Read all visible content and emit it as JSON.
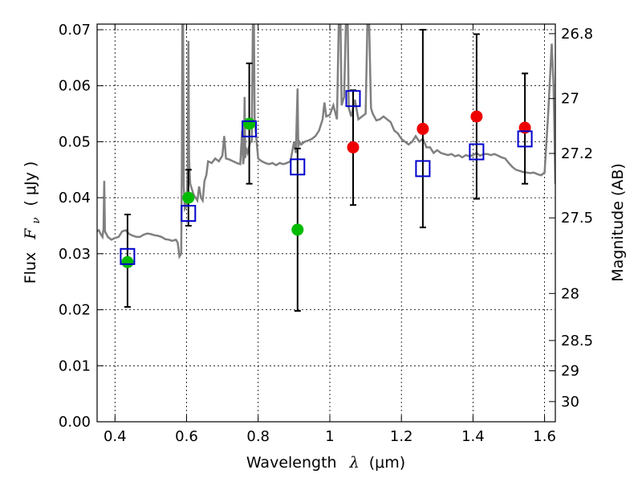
{
  "chart_data": {
    "type": "scatter",
    "xlabel": {
      "prefix": "Wavelength",
      "symbol": "λ",
      "unit": "(μm)"
    },
    "ylabel": {
      "prefix": "Flux",
      "symbol": "F",
      "subscript": "ν",
      "unit": "( μJy )"
    },
    "ylabel_right": "Magnitude (AB)",
    "xlim": [
      0.35,
      1.63
    ],
    "ylim": [
      0.0,
      0.071
    ],
    "grid": true,
    "x_ticks": [
      {
        "value": 0.4,
        "label": "0.4"
      },
      {
        "value": 0.6,
        "label": "0.6"
      },
      {
        "value": 0.8,
        "label": "0.8"
      },
      {
        "value": 1.0,
        "label": "1"
      },
      {
        "value": 1.2,
        "label": "1.2"
      },
      {
        "value": 1.4,
        "label": "1.4"
      },
      {
        "value": 1.6,
        "label": "1.6"
      }
    ],
    "y_ticks": [
      {
        "value": 0.0,
        "label": "0.00"
      },
      {
        "value": 0.01,
        "label": "0.01"
      },
      {
        "value": 0.02,
        "label": "0.02"
      },
      {
        "value": 0.03,
        "label": "0.03"
      },
      {
        "value": 0.04,
        "label": "0.04"
      },
      {
        "value": 0.05,
        "label": "0.05"
      },
      {
        "value": 0.06,
        "label": "0.06"
      },
      {
        "value": 0.07,
        "label": "0.07"
      }
    ],
    "y_right_ticks": [
      {
        "flux": 0.0693,
        "label": "26.8"
      },
      {
        "flux": 0.0577,
        "label": "27"
      },
      {
        "flux": 0.0479,
        "label": "27.2"
      },
      {
        "flux": 0.0364,
        "label": "27.5"
      },
      {
        "flux": 0.0229,
        "label": "28"
      },
      {
        "flux": 0.0145,
        "label": "28.5"
      },
      {
        "flux": 0.0091,
        "label": "29"
      },
      {
        "flux": 0.0036,
        "label": "30"
      }
    ],
    "colors": {
      "model": "#808080",
      "green": "#00bb00",
      "red": "#ee0000",
      "squares": "#0000cc",
      "errorbars": "#000000"
    },
    "model_spectrum": [
      [
        0.35,
        0.034
      ],
      [
        0.355,
        0.0342
      ],
      [
        0.36,
        0.0335
      ],
      [
        0.365,
        0.033
      ],
      [
        0.368,
        0.0345
      ],
      [
        0.37,
        0.043
      ],
      [
        0.372,
        0.034
      ],
      [
        0.38,
        0.033
      ],
      [
        0.39,
        0.0325
      ],
      [
        0.4,
        0.0328
      ],
      [
        0.41,
        0.033
      ],
      [
        0.42,
        0.034
      ],
      [
        0.43,
        0.0342
      ],
      [
        0.44,
        0.0335
      ],
      [
        0.45,
        0.0332
      ],
      [
        0.46,
        0.033
      ],
      [
        0.47,
        0.033
      ],
      [
        0.48,
        0.0334
      ],
      [
        0.49,
        0.0336
      ],
      [
        0.5,
        0.0335
      ],
      [
        0.51,
        0.0333
      ],
      [
        0.52,
        0.0332
      ],
      [
        0.53,
        0.033
      ],
      [
        0.54,
        0.0326
      ],
      [
        0.55,
        0.0325
      ],
      [
        0.56,
        0.0323
      ],
      [
        0.57,
        0.0325
      ],
      [
        0.575,
        0.032
      ],
      [
        0.58,
        0.0295
      ],
      [
        0.585,
        0.03
      ],
      [
        0.587,
        0.048
      ],
      [
        0.588,
        0.071
      ],
      [
        0.59,
        0.071
      ],
      [
        0.592,
        0.042
      ],
      [
        0.595,
        0.038
      ],
      [
        0.6,
        0.0385
      ],
      [
        0.603,
        0.045
      ],
      [
        0.605,
        0.068
      ],
      [
        0.607,
        0.047
      ],
      [
        0.61,
        0.0425
      ],
      [
        0.615,
        0.0415
      ],
      [
        0.62,
        0.0405
      ],
      [
        0.63,
        0.0395
      ],
      [
        0.635,
        0.042
      ],
      [
        0.64,
        0.04
      ],
      [
        0.645,
        0.0395
      ],
      [
        0.65,
        0.043
      ],
      [
        0.655,
        0.044
      ],
      [
        0.66,
        0.0465
      ],
      [
        0.67,
        0.0462
      ],
      [
        0.68,
        0.047
      ],
      [
        0.69,
        0.0465
      ],
      [
        0.7,
        0.0475
      ],
      [
        0.705,
        0.051
      ],
      [
        0.71,
        0.047
      ],
      [
        0.72,
        0.0468
      ],
      [
        0.73,
        0.0465
      ],
      [
        0.74,
        0.0462
      ],
      [
        0.75,
        0.046
      ],
      [
        0.755,
        0.052
      ],
      [
        0.758,
        0.046
      ],
      [
        0.76,
        0.047
      ],
      [
        0.762,
        0.058
      ],
      [
        0.764,
        0.0471
      ],
      [
        0.765,
        0.049
      ],
      [
        0.77,
        0.048
      ],
      [
        0.778,
        0.05
      ],
      [
        0.782,
        0.05
      ],
      [
        0.785,
        0.071
      ],
      [
        0.788,
        0.071
      ],
      [
        0.79,
        0.054
      ],
      [
        0.8,
        0.047
      ],
      [
        0.81,
        0.0465
      ],
      [
        0.82,
        0.0462
      ],
      [
        0.83,
        0.046
      ],
      [
        0.84,
        0.0462
      ],
      [
        0.85,
        0.0458
      ],
      [
        0.86,
        0.0462
      ],
      [
        0.87,
        0.046
      ],
      [
        0.88,
        0.0462
      ],
      [
        0.89,
        0.0465
      ],
      [
        0.9,
        0.05
      ],
      [
        0.905,
        0.048
      ],
      [
        0.91,
        0.0595
      ],
      [
        0.912,
        0.049
      ],
      [
        0.915,
        0.05
      ],
      [
        0.92,
        0.0495
      ],
      [
        0.93,
        0.05
      ],
      [
        0.94,
        0.0502
      ],
      [
        0.95,
        0.0505
      ],
      [
        0.96,
        0.051
      ],
      [
        0.97,
        0.052
      ],
      [
        0.98,
        0.054
      ],
      [
        0.985,
        0.057
      ],
      [
        0.99,
        0.0545
      ],
      [
        1.0,
        0.0548
      ],
      [
        1.01,
        0.0565
      ],
      [
        1.02,
        0.054
      ],
      [
        1.025,
        0.071
      ],
      [
        1.03,
        0.071
      ],
      [
        1.033,
        0.0565
      ],
      [
        1.04,
        0.058
      ],
      [
        1.045,
        0.071
      ],
      [
        1.05,
        0.071
      ],
      [
        1.053,
        0.056
      ],
      [
        1.06,
        0.0545
      ],
      [
        1.07,
        0.0575
      ],
      [
        1.08,
        0.054
      ],
      [
        1.09,
        0.0545
      ],
      [
        1.1,
        0.055
      ],
      [
        1.105,
        0.071
      ],
      [
        1.11,
        0.071
      ],
      [
        1.115,
        0.056
      ],
      [
        1.12,
        0.055
      ],
      [
        1.13,
        0.0538
      ],
      [
        1.14,
        0.054
      ],
      [
        1.15,
        0.0545
      ],
      [
        1.16,
        0.054
      ],
      [
        1.17,
        0.0535
      ],
      [
        1.18,
        0.052
      ],
      [
        1.19,
        0.0515
      ],
      [
        1.2,
        0.0505
      ],
      [
        1.21,
        0.05
      ],
      [
        1.22,
        0.0495
      ],
      [
        1.23,
        0.05
      ],
      [
        1.24,
        0.051
      ],
      [
        1.25,
        0.05
      ],
      [
        1.26,
        0.0505
      ],
      [
        1.27,
        0.049
      ],
      [
        1.28,
        0.049
      ],
      [
        1.29,
        0.048
      ],
      [
        1.3,
        0.0485
      ],
      [
        1.31,
        0.048
      ],
      [
        1.32,
        0.0478
      ],
      [
        1.33,
        0.0476
      ],
      [
        1.34,
        0.0478
      ],
      [
        1.35,
        0.0474
      ],
      [
        1.36,
        0.0476
      ],
      [
        1.37,
        0.0472
      ],
      [
        1.38,
        0.0476
      ],
      [
        1.39,
        0.0474
      ],
      [
        1.4,
        0.0476
      ],
      [
        1.41,
        0.048
      ],
      [
        1.42,
        0.0475
      ],
      [
        1.43,
        0.0478
      ],
      [
        1.44,
        0.0478
      ],
      [
        1.45,
        0.0476
      ],
      [
        1.46,
        0.0478
      ],
      [
        1.47,
        0.0475
      ],
      [
        1.48,
        0.0472
      ],
      [
        1.49,
        0.047
      ],
      [
        1.5,
        0.0462
      ],
      [
        1.51,
        0.0455
      ],
      [
        1.52,
        0.045
      ],
      [
        1.53,
        0.0448
      ],
      [
        1.54,
        0.0446
      ],
      [
        1.55,
        0.0445
      ],
      [
        1.56,
        0.0444
      ],
      [
        1.57,
        0.0445
      ],
      [
        1.58,
        0.0442
      ],
      [
        1.59,
        0.044
      ],
      [
        1.6,
        0.0445
      ],
      [
        1.61,
        0.055
      ],
      [
        1.62,
        0.0675
      ],
      [
        1.625,
        0.06
      ],
      [
        1.63,
        0.0425
      ]
    ],
    "observations": [
      {
        "x": 0.435,
        "y": 0.0295,
        "err_low": 0.0205,
        "err_high": 0.037
      },
      {
        "x": 0.605,
        "y": 0.0372,
        "err_low": 0.035,
        "err_high": 0.045
      },
      {
        "x": 0.775,
        "y": 0.0523,
        "err_low": 0.0425,
        "err_high": 0.064
      },
      {
        "x": 0.91,
        "y": 0.0455,
        "err_low": 0.0198,
        "err_high": 0.0488
      },
      {
        "x": 1.065,
        "y": 0.0577,
        "err_low": 0.0387,
        "err_high": 0.0592
      },
      {
        "x": 1.26,
        "y": 0.0452,
        "err_low": 0.0347,
        "err_high": 0.07
      },
      {
        "x": 1.41,
        "y": 0.0482,
        "err_low": 0.0398,
        "err_high": 0.0692
      },
      {
        "x": 1.545,
        "y": 0.0505,
        "err_low": 0.0425,
        "err_high": 0.0622
      }
    ],
    "green_points": [
      {
        "x": 0.435,
        "y": 0.0285
      },
      {
        "x": 0.605,
        "y": 0.04
      },
      {
        "x": 0.775,
        "y": 0.0532
      },
      {
        "x": 0.91,
        "y": 0.0343
      }
    ],
    "red_points": [
      {
        "x": 1.065,
        "y": 0.049
      },
      {
        "x": 1.26,
        "y": 0.0523
      },
      {
        "x": 1.41,
        "y": 0.0545
      },
      {
        "x": 1.545,
        "y": 0.0525
      }
    ]
  }
}
